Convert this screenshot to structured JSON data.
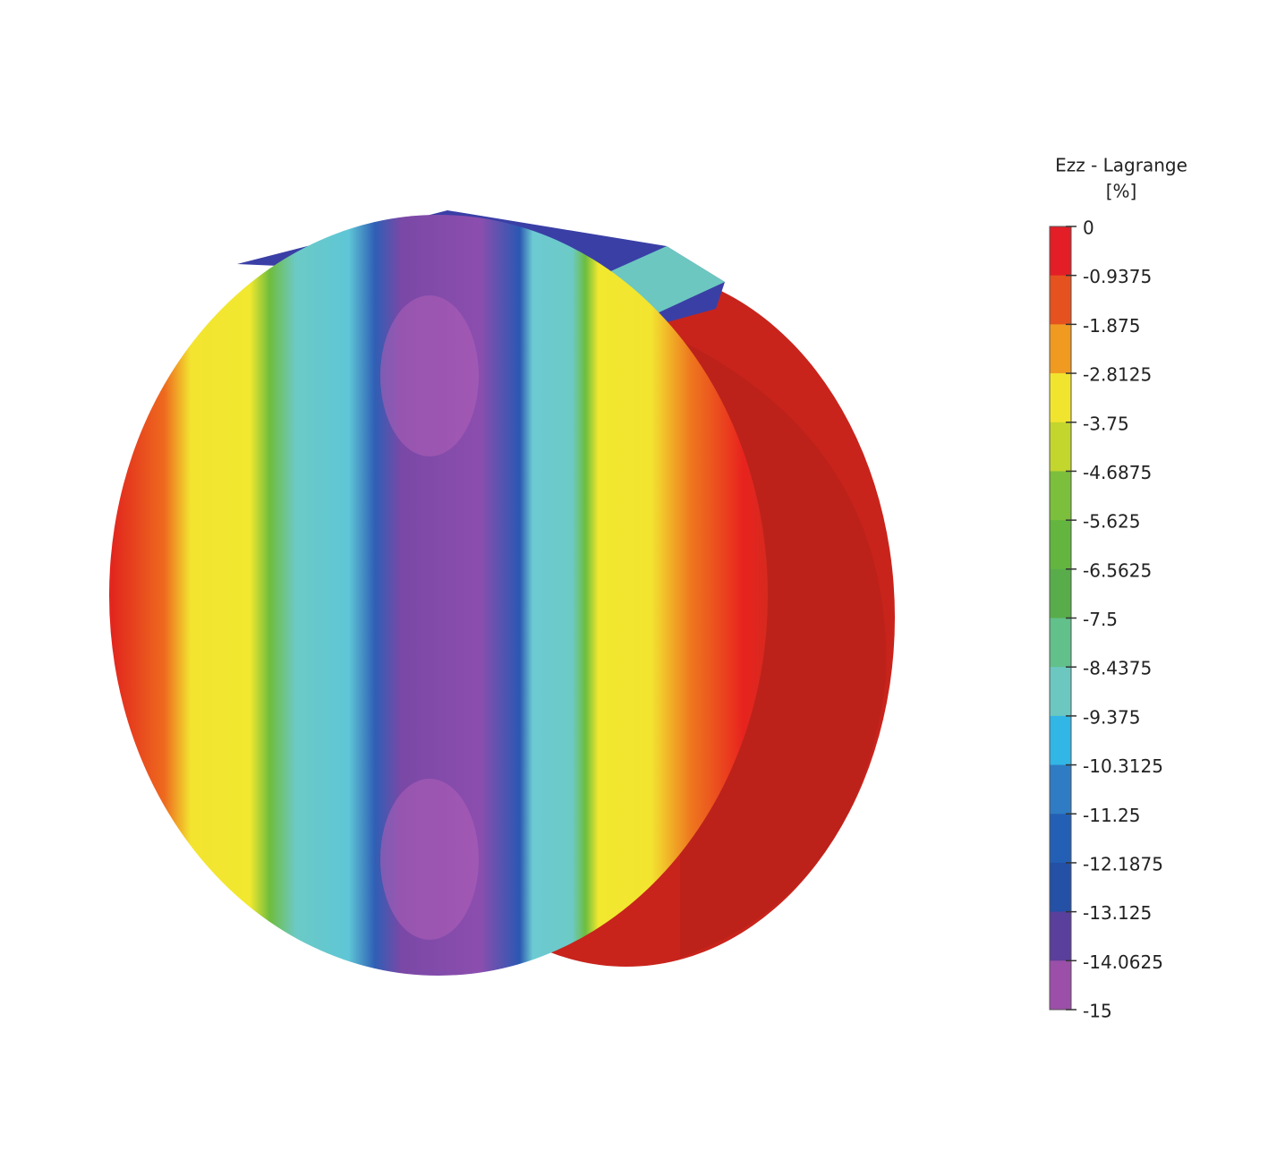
{
  "colorbar": {
    "title": "Ezz - Lagrange",
    "unit": "[%]",
    "ticks": [
      0,
      -0.9375,
      -1.875,
      -2.8125,
      -3.75,
      -4.6875,
      -5.625,
      -6.5625,
      -7.5,
      -8.4375,
      -9.375,
      -10.3125,
      -11.25,
      -12.1875,
      -13.125,
      -14.0625,
      -15
    ],
    "colors": [
      "#e41e26",
      "#e5521f",
      "#f09a22",
      "#f1e42f",
      "#c3d62e",
      "#7bbf3c",
      "#63b53f",
      "#58ad4a",
      "#62c08a",
      "#6cc7c1",
      "#32b6e6",
      "#2f7cc4",
      "#2360b5",
      "#2450a6",
      "#5a3f9c",
      "#9b4fa8"
    ]
  }
}
